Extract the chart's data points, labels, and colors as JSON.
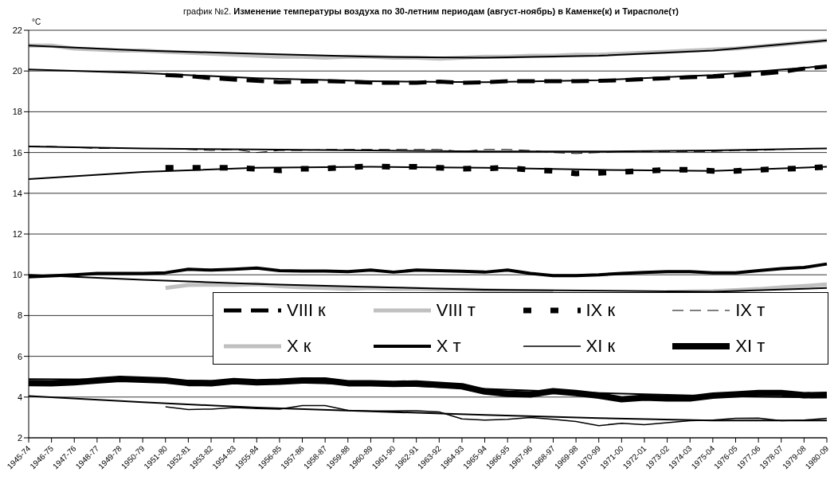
{
  "chart_data": {
    "type": "line",
    "title": "график №2. Изменение температуры воздуха по 30-летним периодам (август-ноябрь) в Каменке(к) и Тирасполе(т)",
    "ylabel": "°C",
    "categories": [
      "1945-74",
      "1946-75",
      "1947-76",
      "1948-77",
      "1949-78",
      "1950-79",
      "1951-80",
      "1952-81",
      "1953-82",
      "1954-83",
      "1955-84",
      "1956-85",
      "1957-86",
      "1958-87",
      "1959-88",
      "1960-89",
      "1961-90",
      "1962-91",
      "1963-92",
      "1964-93",
      "1965-94",
      "1966-95",
      "1967-96",
      "1968-97",
      "1969-98",
      "1970-99",
      "1971-00",
      "1972-01",
      "1973-02",
      "1974-03",
      "1975-04",
      "1976-05",
      "1977-06",
      "1978-07",
      "1979-08",
      "1980-09"
    ],
    "ylim": [
      2,
      22
    ],
    "yticks": [
      2,
      4,
      6,
      8,
      10,
      12,
      14,
      16,
      18,
      20,
      22
    ],
    "grid": "y",
    "legend": "bottom right",
    "marker": "none",
    "series": [
      {
        "name": "VIII к",
        "color": "#000000",
        "line_style": "dashed",
        "values": [
          null,
          null,
          null,
          null,
          null,
          null,
          19.8,
          19.75,
          19.65,
          19.58,
          19.52,
          19.45,
          19.48,
          19.5,
          19.48,
          19.43,
          19.42,
          19.42,
          19.48,
          19.42,
          19.45,
          19.5,
          19.5,
          19.5,
          19.5,
          19.52,
          19.55,
          19.6,
          19.65,
          19.7,
          19.72,
          19.78,
          19.85,
          19.95,
          20.12,
          20.22
        ]
      },
      {
        "name": "VIII т",
        "color": "#c0c0c0",
        "line_style": "solid",
        "values": [
          21.25,
          21.25,
          21.1,
          21.05,
          21.0,
          21.0,
          20.95,
          20.9,
          20.85,
          20.8,
          20.75,
          20.7,
          20.7,
          20.65,
          20.7,
          20.7,
          20.65,
          20.65,
          20.6,
          20.65,
          20.7,
          20.7,
          20.75,
          20.75,
          20.8,
          20.8,
          20.85,
          20.9,
          20.95,
          21.0,
          21.05,
          21.1,
          21.2,
          21.3,
          21.4,
          21.5
        ]
      },
      {
        "name": "IX к",
        "color": "#000000",
        "line_style": "dotted",
        "values": [
          null,
          null,
          null,
          null,
          null,
          null,
          15.25,
          15.25,
          15.25,
          15.25,
          15.2,
          15.12,
          15.2,
          15.22,
          15.27,
          15.33,
          15.3,
          15.3,
          15.25,
          15.2,
          15.22,
          15.25,
          15.15,
          15.1,
          14.97,
          15.0,
          15.05,
          15.1,
          15.15,
          15.15,
          15.1,
          15.1,
          15.15,
          15.2,
          15.22,
          15.3
        ]
      },
      {
        "name": "IX т",
        "color": "#000000",
        "line_style": "dashed",
        "values": [
          16.3,
          16.3,
          16.25,
          16.2,
          16.2,
          16.2,
          16.2,
          16.15,
          16.1,
          16.15,
          16.0,
          16.1,
          16.1,
          16.15,
          16.15,
          16.15,
          16.15,
          16.15,
          16.15,
          16.05,
          16.15,
          16.15,
          16.1,
          16.0,
          15.95,
          16.0,
          16.05,
          16.05,
          16.05,
          16.05,
          16.05,
          16.1,
          16.1,
          16.15,
          16.2,
          16.2
        ]
      },
      {
        "name": "X к",
        "color": "#c0c0c0",
        "line_style": "solid",
        "values": [
          null,
          null,
          null,
          null,
          null,
          null,
          9.35,
          9.5,
          9.52,
          9.5,
          9.54,
          9.44,
          9.38,
          9.35,
          9.3,
          9.35,
          9.3,
          9.3,
          9.28,
          9.28,
          9.25,
          9.22,
          9.2,
          9.18,
          null,
          null,
          null,
          null,
          9.15,
          9.18,
          9.2,
          9.25,
          9.3,
          9.38,
          9.45,
          9.53
        ]
      },
      {
        "name": "X т",
        "color": "#000000",
        "line_style": "solid",
        "values": [
          9.9,
          9.95,
          10.0,
          10.07,
          10.07,
          10.07,
          10.1,
          10.27,
          10.23,
          10.27,
          10.33,
          10.2,
          10.18,
          10.18,
          10.15,
          10.23,
          10.13,
          10.23,
          10.2,
          10.17,
          10.13,
          10.23,
          10.07,
          9.96,
          9.96,
          10.0,
          10.07,
          10.12,
          10.15,
          10.15,
          10.1,
          10.1,
          10.2,
          10.3,
          10.36,
          10.53
        ]
      },
      {
        "name": "XI к",
        "color": "#000000",
        "line_style": "solid",
        "values": [
          null,
          null,
          null,
          null,
          null,
          null,
          3.52,
          3.39,
          3.41,
          3.48,
          3.44,
          3.41,
          3.58,
          3.58,
          3.35,
          3.32,
          3.32,
          3.33,
          3.27,
          2.93,
          2.87,
          2.91,
          3.0,
          2.91,
          2.8,
          2.6,
          2.71,
          2.64,
          2.74,
          2.84,
          2.87,
          2.96,
          2.97,
          2.84,
          2.87,
          2.96
        ]
      },
      {
        "name": "XI т",
        "color": "#000000",
        "line_style": "solid",
        "values": [
          4.69,
          4.68,
          4.72,
          4.81,
          4.89,
          4.85,
          4.81,
          4.69,
          4.68,
          4.78,
          4.72,
          4.75,
          4.81,
          4.81,
          4.68,
          4.68,
          4.65,
          4.67,
          4.6,
          4.53,
          4.27,
          4.16,
          4.13,
          4.29,
          4.2,
          4.07,
          3.89,
          3.97,
          3.93,
          3.93,
          4.07,
          4.13,
          4.2,
          4.2,
          4.09,
          4.11
        ]
      },
      {
        "type": "line",
        "color": "#000000",
        "line_style": "solid",
        "values": [
          21.25,
          null,
          null,
          null,
          null,
          21.0,
          null,
          null,
          null,
          null,
          20.85,
          null,
          null,
          null,
          null,
          20.7,
          null,
          null,
          null,
          null,
          20.65,
          null,
          null,
          null,
          null,
          20.75,
          null,
          null,
          null,
          null,
          21.0,
          null,
          null,
          null,
          null,
          21.5
        ]
      },
      {
        "type": "line",
        "color": "#000000",
        "line_style": "solid",
        "values": [
          20.08,
          null,
          null,
          null,
          null,
          19.9,
          null,
          null,
          null,
          null,
          19.65,
          null,
          null,
          null,
          null,
          19.5,
          null,
          null,
          null,
          null,
          19.45,
          null,
          null,
          null,
          null,
          19.55,
          null,
          null,
          null,
          null,
          19.8,
          null,
          null,
          null,
          null,
          20.25
        ]
      },
      {
        "type": "line",
        "color": "#000000",
        "line_style": "solid",
        "values": [
          16.3,
          null,
          null,
          null,
          null,
          16.2,
          null,
          null,
          null,
          null,
          16.15,
          null,
          null,
          null,
          null,
          16.1,
          null,
          null,
          null,
          null,
          16.05,
          null,
          null,
          null,
          null,
          16.05,
          null,
          null,
          null,
          null,
          16.1,
          null,
          null,
          null,
          null,
          16.2
        ]
      },
      {
        "type": "line",
        "color": "#000000",
        "line_style": "solid",
        "values": [
          14.7,
          null,
          null,
          null,
          null,
          15.05,
          null,
          null,
          null,
          null,
          15.25,
          null,
          null,
          null,
          null,
          15.3,
          null,
          null,
          null,
          null,
          15.25,
          null,
          null,
          null,
          null,
          15.15,
          null,
          null,
          null,
          null,
          15.1,
          null,
          null,
          null,
          null,
          15.3
        ]
      },
      {
        "type": "line",
        "color": "#000000",
        "line_style": "solid",
        "values": [
          10.0,
          null,
          null,
          null,
          null,
          9.75,
          null,
          null,
          null,
          null,
          9.55,
          null,
          null,
          null,
          null,
          9.4,
          null,
          null,
          null,
          null,
          9.27,
          null,
          null,
          null,
          null,
          null,
          null,
          null,
          null,
          null,
          9.17,
          null,
          null,
          null,
          null,
          9.35
        ]
      },
      {
        "type": "line",
        "color": "#000000",
        "line_style": "solid",
        "values": [
          4.88,
          null,
          null,
          null,
          null,
          4.85,
          null,
          null,
          null,
          null,
          4.75,
          null,
          null,
          null,
          null,
          4.62,
          null,
          null,
          null,
          null,
          4.4,
          null,
          null,
          null,
          null,
          4.2,
          null,
          null,
          null,
          null,
          4.05,
          null,
          null,
          null,
          null,
          3.97
        ]
      },
      {
        "type": "line",
        "color": "#000000",
        "line_style": "solid",
        "values": [
          4.05,
          null,
          null,
          null,
          null,
          3.75,
          null,
          null,
          null,
          null,
          3.48,
          null,
          null,
          null,
          null,
          3.3,
          null,
          null,
          null,
          null,
          3.12,
          null,
          null,
          null,
          null,
          2.97,
          null,
          null,
          null,
          null,
          2.85,
          null,
          null,
          null,
          null,
          2.85
        ]
      }
    ]
  }
}
